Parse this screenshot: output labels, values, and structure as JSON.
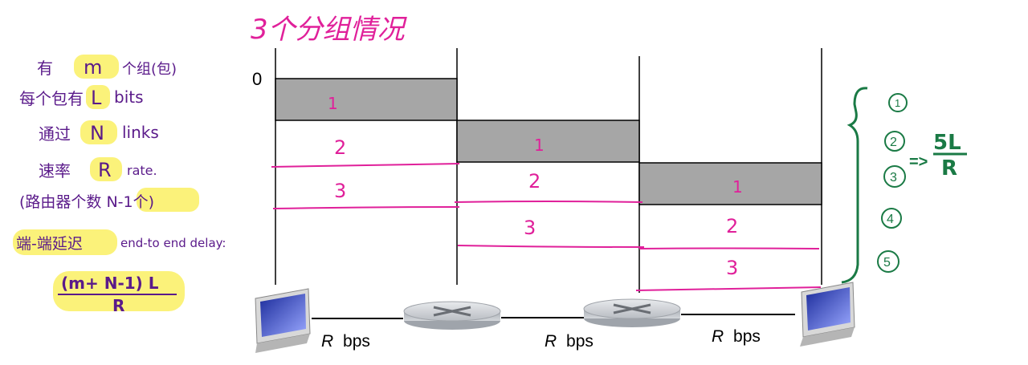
{
  "title": "3个分组情况",
  "notes": {
    "line1": {
      "prefix": "有",
      "value": "m",
      "suffix": "个组(包)"
    },
    "line2": {
      "prefix": "每个包有",
      "value": "L",
      "suffix": "bits"
    },
    "line3": {
      "prefix": "通过",
      "value": "N",
      "suffix": "links"
    },
    "line4": {
      "prefix": "速率",
      "value": "R",
      "suffix": "rate."
    },
    "line5": {
      "text": "(路由器个数 N-1个)"
    },
    "line6": {
      "prefix": "端-端延迟",
      "suffix": "end-to end delay:"
    },
    "formula": {
      "numerator": "(m+ N-1) L",
      "denominator": "R"
    }
  },
  "timeline": {
    "start_label": "0",
    "links": [
      {
        "id": "link-1",
        "rate_label": "bps",
        "rate_symbol": "R"
      },
      {
        "id": "link-2",
        "rate_label": "bps",
        "rate_symbol": "R"
      },
      {
        "id": "link-3",
        "rate_label": "bps",
        "rate_symbol": "R"
      }
    ],
    "packet_labels": [
      "1",
      "2",
      "3"
    ]
  },
  "side": {
    "steps": [
      "1",
      "2",
      "3",
      "4",
      "5"
    ],
    "arrow": "=>",
    "result_numerator": "5L",
    "result_denominator": "R"
  },
  "colors": {
    "packet_fill": "#a6a6a6",
    "magenta": "#e0209a",
    "purple": "#5a1a8a",
    "green": "#1a7a45",
    "highlight": "#fbf27a"
  }
}
